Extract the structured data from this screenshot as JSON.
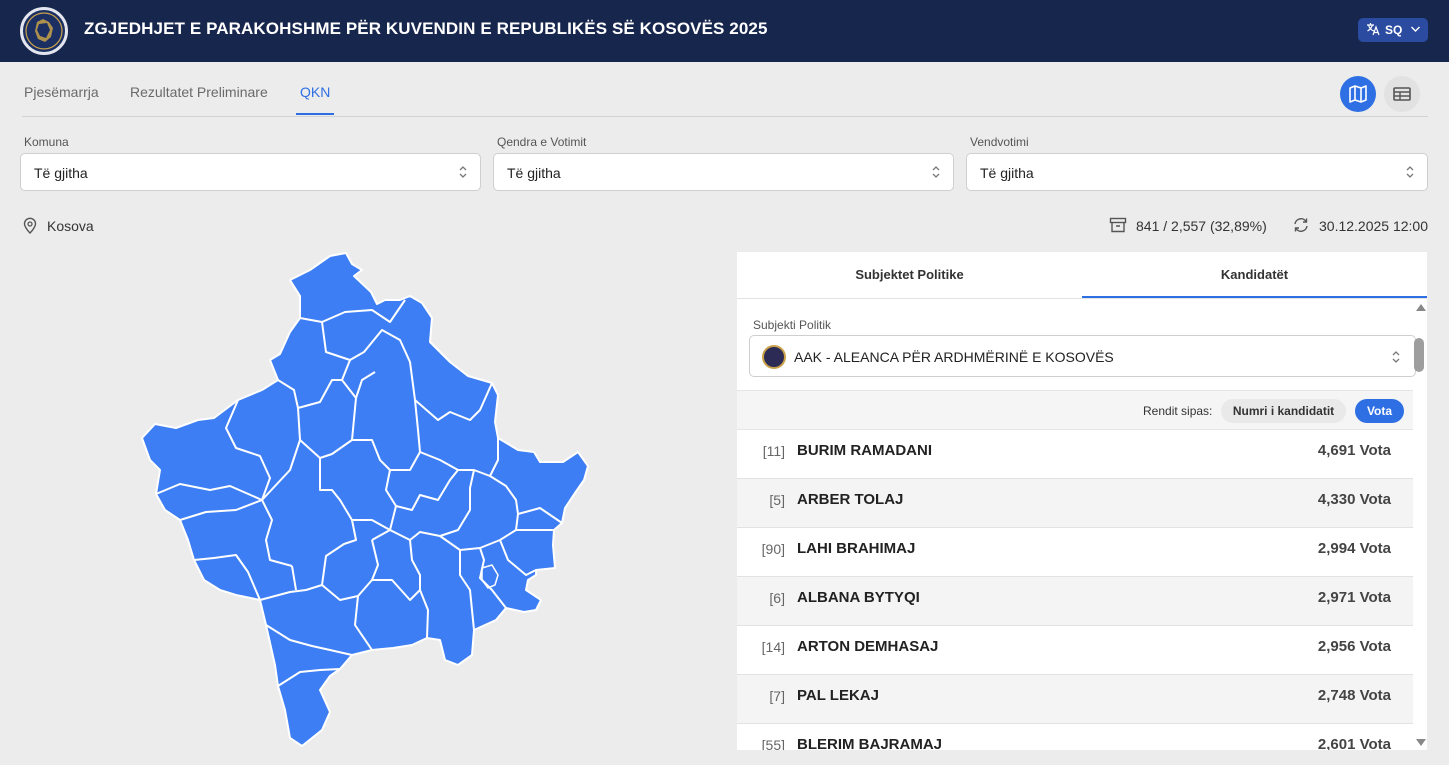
{
  "header": {
    "title": "ZGJEDHJET E PARAKOHSHME PËR KUVENDIN E REPUBLIKËS SË KOSOVËS 2025",
    "language": "SQ"
  },
  "tabs": [
    {
      "label": "Pjesëmarrja"
    },
    {
      "label": "Rezultatet Preliminare"
    },
    {
      "label": "QKN",
      "active": true
    }
  ],
  "filters": {
    "komuna": {
      "label": "Komuna",
      "value": "Të gjitha"
    },
    "qendra": {
      "label": "Qendra e Votimit",
      "value": "Të gjitha"
    },
    "vendvotimi": {
      "label": "Vendvotimi",
      "value": "Të gjitha"
    }
  },
  "location": "Kosova",
  "stats": {
    "stations": "841 / 2,557 (32,89%)",
    "updated": "30.12.2025 12:00"
  },
  "colors": {
    "map_fill": "#3d7ef5",
    "accent": "#2f6fe4",
    "header_bg": "#17264d"
  },
  "panel": {
    "tabs": [
      {
        "label": "Subjektet Politike"
      },
      {
        "label": "Kandidatët",
        "active": true
      }
    ],
    "party_label": "Subjekti Politik",
    "party_value": "AAK - ALEANCA PËR ARDHMËRINË E KOSOVËS",
    "sort_label": "Rendit sipas:",
    "sort_options": [
      "Numri i kandidatit",
      "Vota"
    ],
    "candidates": [
      {
        "num": "[11]",
        "name": "BURIM RAMADANI",
        "votes": "4,691 Vota"
      },
      {
        "num": "[5]",
        "name": "ARBER TOLAJ",
        "votes": "4,330 Vota"
      },
      {
        "num": "[90]",
        "name": "LAHI BRAHIMAJ",
        "votes": "2,994 Vota"
      },
      {
        "num": "[6]",
        "name": "ALBANA BYTYQI",
        "votes": "2,971 Vota"
      },
      {
        "num": "[14]",
        "name": "ARTON DEMHASAJ",
        "votes": "2,956 Vota"
      },
      {
        "num": "[7]",
        "name": "PAL LEKAJ",
        "votes": "2,748 Vota"
      },
      {
        "num": "[55]",
        "name": "BLERIM BAJRAMAJ",
        "votes": "2,601 Vota"
      }
    ]
  }
}
